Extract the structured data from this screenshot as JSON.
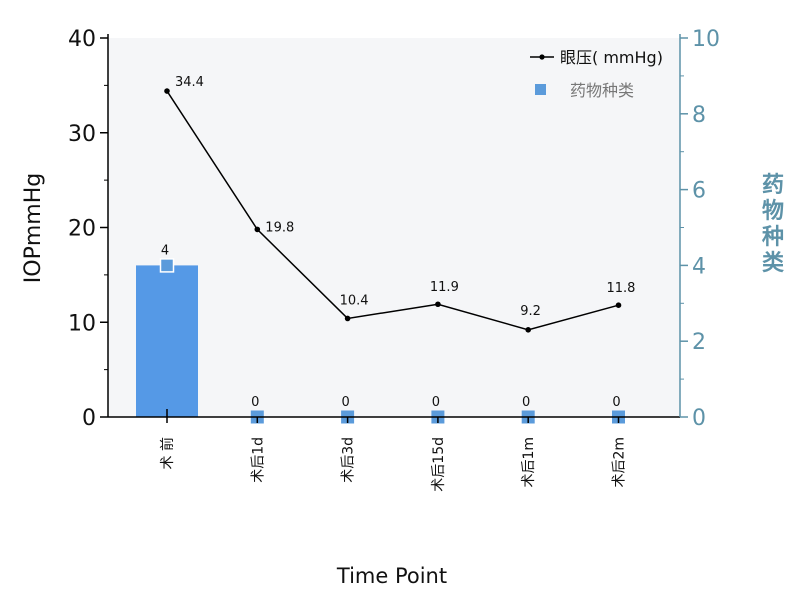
{
  "chart_data": {
    "type": "bar+line",
    "categories": [
      "术 前",
      "术后1d",
      "术后3d",
      "术后15d",
      "术后1m",
      "术后2m"
    ],
    "xlabel": "Time Point",
    "left_axis": {
      "label": "IOPmmHg",
      "ylim": [
        0,
        40
      ],
      "ticks": [
        0,
        10,
        20,
        30,
        40
      ]
    },
    "right_axis": {
      "label": "药物种类",
      "ylim": [
        0,
        10
      ],
      "ticks": [
        0,
        2,
        4,
        6,
        8,
        10
      ]
    },
    "series": [
      {
        "name": "眼压( mmHg)",
        "type": "line",
        "axis": "left",
        "values": [
          34.4,
          19.8,
          10.4,
          11.9,
          9.2,
          11.8
        ],
        "labels": [
          "34.4",
          "19.8",
          "10.4",
          "11.9",
          "9.2",
          "11.8"
        ],
        "color": "#000000"
      },
      {
        "name": "药物种类",
        "type": "bar",
        "axis": "right",
        "values": [
          4,
          0,
          0,
          0,
          0,
          0
        ],
        "labels": [
          "4",
          "0",
          "0",
          "0",
          "0",
          "0"
        ],
        "color": "#5599e6"
      }
    ],
    "legend_position": "top-right",
    "colors": {
      "plot_bg": "#f5f6f8",
      "right_axis": "#5d92a8",
      "bar": "#5599e6",
      "marker": "#5b9bdb"
    }
  }
}
